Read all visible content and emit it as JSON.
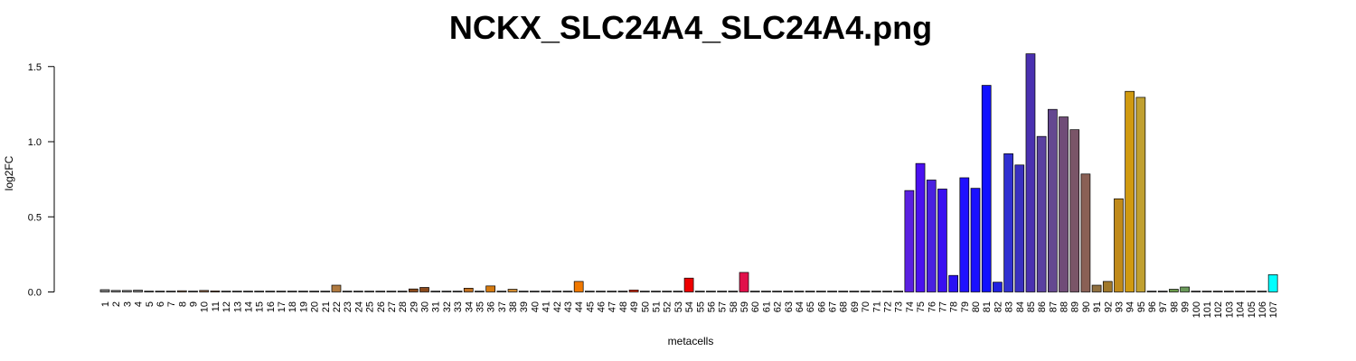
{
  "chart_data": {
    "type": "bar",
    "title": "NCKX_SLC24A4_SLC24A4.png",
    "xlabel": "metacells",
    "ylabel": "log2FC",
    "ylim": [
      0,
      1.6
    ],
    "yticks": [
      "0.0",
      "0.5",
      "1.0",
      "1.5"
    ],
    "ytick_values": [
      0,
      0.5,
      1.0,
      1.5
    ],
    "grid": false,
    "legend": "none",
    "categories": [
      "1",
      "2",
      "3",
      "4",
      "5",
      "6",
      "7",
      "8",
      "9",
      "10",
      "11",
      "12",
      "13",
      "14",
      "15",
      "16",
      "17",
      "18",
      "19",
      "20",
      "21",
      "22",
      "23",
      "24",
      "25",
      "26",
      "27",
      "28",
      "29",
      "30",
      "31",
      "32",
      "33",
      "34",
      "35",
      "36",
      "37",
      "38",
      "39",
      "40",
      "41",
      "42",
      "43",
      "44",
      "45",
      "46",
      "47",
      "48",
      "49",
      "50",
      "51",
      "52",
      "53",
      "54",
      "55",
      "56",
      "57",
      "58",
      "59",
      "60",
      "61",
      "62",
      "63",
      "64",
      "65",
      "66",
      "67",
      "68",
      "69",
      "70",
      "71",
      "72",
      "73",
      "74",
      "75",
      "76",
      "77",
      "78",
      "79",
      "80",
      "81",
      "82",
      "83",
      "84",
      "85",
      "86",
      "87",
      "88",
      "89",
      "90",
      "91",
      "92",
      "93",
      "94",
      "95",
      "96",
      "97",
      "98",
      "99",
      "100",
      "101",
      "102",
      "103",
      "104",
      "105",
      "106",
      "107"
    ],
    "values": [
      0.015,
      0.01,
      0.01,
      0.012,
      0.003,
      0.003,
      0.003,
      0.008,
      0.003,
      0.01,
      0.007,
      0.003,
      0.003,
      0.003,
      0.003,
      0.003,
      0.003,
      0.003,
      0.003,
      0.003,
      0.003,
      0.045,
      0.003,
      0.003,
      0.003,
      0.003,
      0.003,
      0.003,
      0.02,
      0.03,
      0.003,
      0.003,
      0.003,
      0.025,
      0.003,
      0.04,
      0.003,
      0.018,
      0.003,
      0.003,
      0.003,
      0.003,
      0.003,
      0.07,
      0.003,
      0.003,
      0.003,
      0.003,
      0.013,
      0.003,
      0.003,
      0.003,
      0.003,
      0.092,
      0.003,
      0.003,
      0.003,
      0.003,
      0.13,
      0.003,
      0.003,
      0.003,
      0.003,
      0.003,
      0.003,
      0.003,
      0.003,
      0.003,
      0.003,
      0.003,
      0.003,
      0.003,
      0.003,
      0.675,
      0.855,
      0.745,
      0.685,
      0.11,
      0.76,
      0.69,
      1.375,
      0.065,
      0.92,
      0.845,
      1.585,
      1.035,
      1.215,
      1.165,
      1.08,
      0.785,
      0.045,
      0.07,
      0.62,
      1.335,
      1.295,
      0.003,
      0.003,
      0.018,
      0.033,
      0.003,
      0.003,
      0.003,
      0.003,
      0.003,
      0.003,
      0.003,
      0.115
    ],
    "colors": [
      "#808080",
      "#808080",
      "#808080",
      "#808080",
      "#808080",
      "#808080",
      "#808080",
      "#8a6a4a",
      "#808080",
      "#8a5a3a",
      "#8a5a3a",
      "#808080",
      "#808080",
      "#808080",
      "#808080",
      "#808080",
      "#808080",
      "#808080",
      "#808080",
      "#808080",
      "#808080",
      "#b07a40",
      "#808080",
      "#808080",
      "#808080",
      "#808080",
      "#808080",
      "#808080",
      "#8b4a1c",
      "#8b4a1c",
      "#808080",
      "#808080",
      "#808080",
      "#c07020",
      "#808080",
      "#d47a10",
      "#808080",
      "#d08a30",
      "#808080",
      "#808080",
      "#808080",
      "#808080",
      "#808080",
      "#f07800",
      "#808080",
      "#808080",
      "#808080",
      "#808080",
      "#e03010",
      "#808080",
      "#808080",
      "#808080",
      "#808080",
      "#ee0000",
      "#808080",
      "#808080",
      "#808080",
      "#808080",
      "#e0104a",
      "#808080",
      "#808080",
      "#808080",
      "#808080",
      "#808080",
      "#808080",
      "#808080",
      "#808080",
      "#808080",
      "#808080",
      "#808080",
      "#808080",
      "#808080",
      "#808080",
      "#5a20e0",
      "#4a10f0",
      "#4a20e0",
      "#3a10f0",
      "#2a10f5",
      "#2010ff",
      "#1a10ff",
      "#1010ff",
      "#2020e0",
      "#3030d0",
      "#3a30c0",
      "#4a30b0",
      "#5a40a0",
      "#644890",
      "#704c78",
      "#7a5568",
      "#8a6055",
      "#907040",
      "#a0782a",
      "#c08a1a",
      "#d09a10",
      "#c0a030",
      "#808080",
      "#808080",
      "#6a9a4a",
      "#6a9a5a",
      "#808080",
      "#808080",
      "#808080",
      "#808080",
      "#808080",
      "#808080",
      "#808080",
      "#00ffff"
    ]
  }
}
